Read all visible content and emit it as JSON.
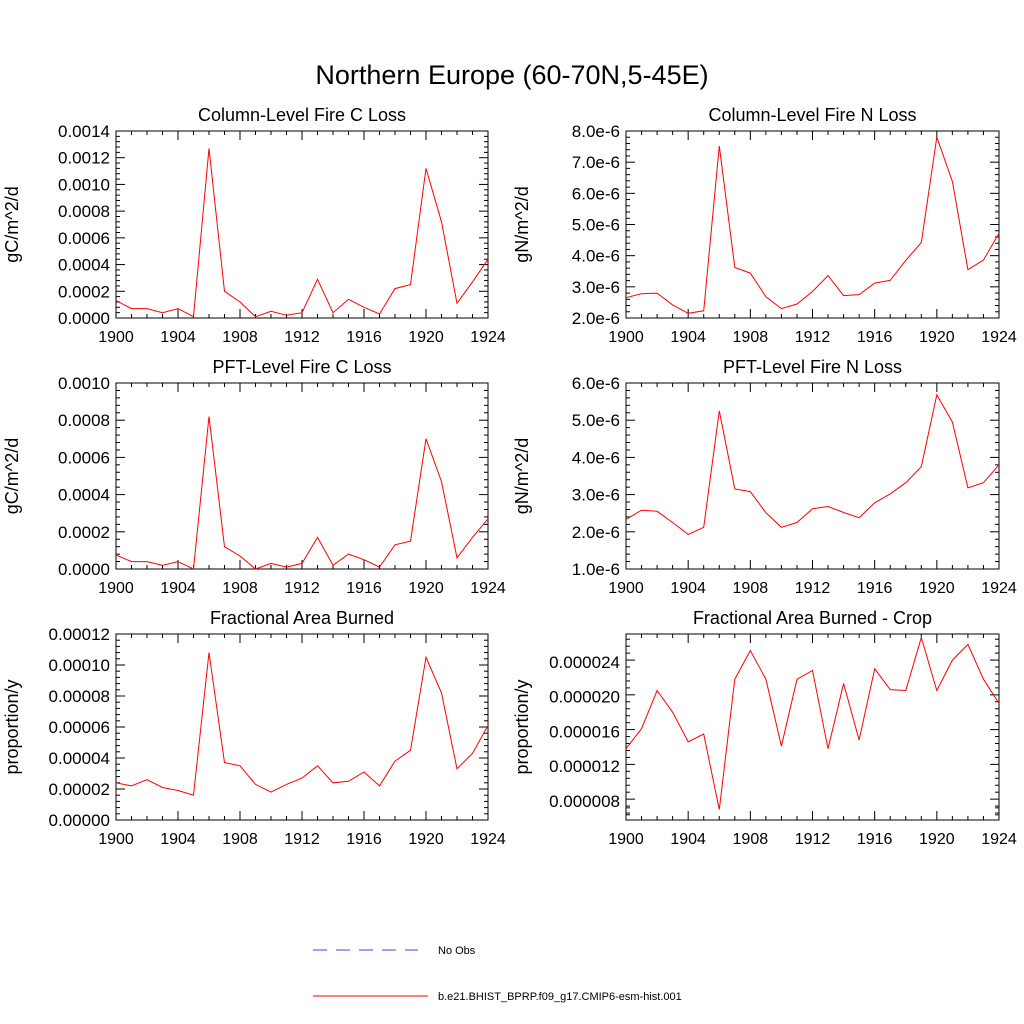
{
  "figure": {
    "title": "Northern Europe (60-70N,5-45E)"
  },
  "legend": {
    "obs_label": "No Obs",
    "model_label": "b.e21.BHIST_BPRP.f09_g17.CMIP6-esm-hist.001",
    "obs_color": "#3d3dff",
    "model_color": "#ff0000"
  },
  "chart_data": [
    {
      "id": "col-fire-c",
      "type": "line",
      "title": "Column-Level Fire C Loss",
      "xlabel": "",
      "ylabel": "gC/m^2/d",
      "xlim": [
        1900,
        1924
      ],
      "ylim": [
        0,
        0.0014
      ],
      "xticks": [
        1900,
        1904,
        1908,
        1912,
        1916,
        1920,
        1924
      ],
      "yticks": [
        0,
        0.0002,
        0.0004,
        0.0006,
        0.0008,
        0.001,
        0.0012,
        0.0014
      ],
      "ytick_labels": [
        "0.0000",
        "0.0002",
        "0.0004",
        "0.0006",
        "0.0008",
        "0.0010",
        "0.0012",
        "0.0014"
      ],
      "x": [
        1900,
        1901,
        1902,
        1903,
        1904,
        1905,
        1906,
        1907,
        1908,
        1909,
        1910,
        1911,
        1912,
        1913,
        1914,
        1915,
        1916,
        1917,
        1918,
        1919,
        1920,
        1921,
        1922,
        1923,
        1924
      ],
      "values": [
        0.00013,
        7e-05,
        7e-05,
        4e-05,
        7e-05,
        1e-05,
        0.00127,
        0.0002,
        0.00012,
        1e-05,
        5e-05,
        2e-05,
        4e-05,
        0.00029,
        4e-05,
        0.00014,
        8e-05,
        3e-05,
        0.00022,
        0.00025,
        0.00112,
        0.00072,
        0.00011,
        0.00027,
        0.00044
      ]
    },
    {
      "id": "col-fire-n",
      "type": "line",
      "title": "Column-Level Fire N Loss",
      "xlabel": "",
      "ylabel": "gN/m^2/d",
      "xlim": [
        1900,
        1924
      ],
      "ylim": [
        2e-06,
        8e-06
      ],
      "xticks": [
        1900,
        1904,
        1908,
        1912,
        1916,
        1920,
        1924
      ],
      "yticks": [
        2e-06,
        3e-06,
        4e-06,
        5e-06,
        6e-06,
        7e-06,
        8e-06
      ],
      "ytick_labels": [
        "2.0e-6",
        "3.0e-6",
        "4.0e-6",
        "5.0e-6",
        "6.0e-6",
        "7.0e-6",
        "8.0e-6"
      ],
      "x": [
        1900,
        1901,
        1902,
        1903,
        1904,
        1905,
        1906,
        1907,
        1908,
        1909,
        1910,
        1911,
        1912,
        1913,
        1914,
        1915,
        1916,
        1917,
        1918,
        1919,
        1920,
        1921,
        1922,
        1923,
        1924
      ],
      "values": [
        2.65e-06,
        2.78e-06,
        2.8e-06,
        2.42e-06,
        2.15e-06,
        2.23e-06,
        7.52e-06,
        3.62e-06,
        3.44e-06,
        2.68e-06,
        2.3e-06,
        2.45e-06,
        2.85e-06,
        3.36e-06,
        2.72e-06,
        2.75e-06,
        3.12e-06,
        3.21e-06,
        3.85e-06,
        4.42e-06,
        7.8e-06,
        6.38e-06,
        3.55e-06,
        3.86e-06,
        4.72e-06
      ]
    },
    {
      "id": "pft-fire-c",
      "type": "line",
      "title": "PFT-Level Fire C Loss",
      "xlabel": "",
      "ylabel": "gC/m^2/d",
      "xlim": [
        1900,
        1924
      ],
      "ylim": [
        0,
        0.001
      ],
      "xticks": [
        1900,
        1904,
        1908,
        1912,
        1916,
        1920,
        1924
      ],
      "yticks": [
        0,
        0.0002,
        0.0004,
        0.0006,
        0.0008,
        0.001
      ],
      "ytick_labels": [
        "0.0000",
        "0.0002",
        "0.0004",
        "0.0006",
        "0.0008",
        "0.0010"
      ],
      "x": [
        1900,
        1901,
        1902,
        1903,
        1904,
        1905,
        1906,
        1907,
        1908,
        1909,
        1910,
        1911,
        1912,
        1913,
        1914,
        1915,
        1916,
        1917,
        1918,
        1919,
        1920,
        1921,
        1922,
        1923,
        1924
      ],
      "values": [
        7.5e-05,
        4e-05,
        4e-05,
        2e-05,
        4e-05,
        0.0,
        0.00082,
        0.00012,
        7e-05,
        0.0,
        3e-05,
        1e-05,
        3e-05,
        0.00017,
        2e-05,
        8e-05,
        5e-05,
        1e-05,
        0.00013,
        0.00015,
        0.0007,
        0.00047,
        6e-05,
        0.00017,
        0.00027
      ]
    },
    {
      "id": "pft-fire-n",
      "type": "line",
      "title": "PFT-Level Fire N Loss",
      "xlabel": "",
      "ylabel": "gN/m^2/d",
      "xlim": [
        1900,
        1924
      ],
      "ylim": [
        1e-06,
        6e-06
      ],
      "xticks": [
        1900,
        1904,
        1908,
        1912,
        1916,
        1920,
        1924
      ],
      "yticks": [
        1e-06,
        2e-06,
        3e-06,
        4e-06,
        5e-06,
        6e-06
      ],
      "ytick_labels": [
        "1.0e-6",
        "2.0e-6",
        "3.0e-6",
        "4.0e-6",
        "5.0e-6",
        "6.0e-6"
      ],
      "x": [
        1900,
        1901,
        1902,
        1903,
        1904,
        1905,
        1906,
        1907,
        1908,
        1909,
        1910,
        1911,
        1912,
        1913,
        1914,
        1915,
        1916,
        1917,
        1918,
        1919,
        1920,
        1921,
        1922,
        1923,
        1924
      ],
      "values": [
        2.33e-06,
        2.58e-06,
        2.55e-06,
        2.25e-06,
        1.93e-06,
        2.12e-06,
        5.25e-06,
        3.15e-06,
        3.08e-06,
        2.51e-06,
        2.12e-06,
        2.25e-06,
        2.62e-06,
        2.68e-06,
        2.52e-06,
        2.38e-06,
        2.78e-06,
        3.02e-06,
        3.32e-06,
        3.75e-06,
        5.68e-06,
        4.95e-06,
        3.18e-06,
        3.32e-06,
        3.8e-06
      ]
    },
    {
      "id": "frac-area-burned",
      "type": "line",
      "title": "Fractional Area Burned",
      "xlabel": "",
      "ylabel": "proportion/y",
      "xlim": [
        1900,
        1924
      ],
      "ylim": [
        0,
        0.00012
      ],
      "xticks": [
        1900,
        1904,
        1908,
        1912,
        1916,
        1920,
        1924
      ],
      "yticks": [
        0,
        2e-05,
        4e-05,
        6e-05,
        8e-05,
        0.0001,
        0.00012
      ],
      "ytick_labels": [
        "0.00000",
        "0.00002",
        "0.00004",
        "0.00006",
        "0.00008",
        "0.00010",
        "0.00012"
      ],
      "x": [
        1900,
        1901,
        1902,
        1903,
        1904,
        1905,
        1906,
        1907,
        1908,
        1909,
        1910,
        1911,
        1912,
        1913,
        1914,
        1915,
        1916,
        1917,
        1918,
        1919,
        1920,
        1921,
        1922,
        1923,
        1924
      ],
      "values": [
        2.4e-05,
        2.2e-05,
        2.6e-05,
        2.1e-05,
        1.9e-05,
        1.6e-05,
        0.000108,
        3.7e-05,
        3.5e-05,
        2.3e-05,
        1.8e-05,
        2.3e-05,
        2.7e-05,
        3.5e-05,
        2.4e-05,
        2.5e-05,
        3.1e-05,
        2.2e-05,
        3.8e-05,
        4.5e-05,
        0.000105,
        8.2e-05,
        3.3e-05,
        4.3e-05,
        6.1e-05
      ]
    },
    {
      "id": "frac-area-burned-crop",
      "type": "line",
      "title": "Fractional Area Burned - Crop",
      "xlabel": "",
      "ylabel": "proportion/y",
      "xlim": [
        1900,
        1924
      ],
      "ylim": [
        5.8e-06,
        2.72e-05
      ],
      "xticks": [
        1900,
        1904,
        1908,
        1912,
        1916,
        1920,
        1924
      ],
      "yticks": [
        8e-06,
        1.2e-05,
        1.6e-05,
        2e-05,
        2.4e-05
      ],
      "ytick_labels": [
        "0.000008",
        "0.000012",
        "0.000016",
        "0.000020",
        "0.000024"
      ],
      "x": [
        1900,
        1901,
        1902,
        1903,
        1904,
        1905,
        1906,
        1907,
        1908,
        1909,
        1910,
        1911,
        1912,
        1913,
        1914,
        1915,
        1916,
        1917,
        1918,
        1919,
        1920,
        1921,
        1922,
        1923,
        1924
      ],
      "values": [
        1.4e-05,
        1.63e-05,
        2.07e-05,
        1.82e-05,
        1.48e-05,
        1.57e-05,
        7e-06,
        2.2e-05,
        2.53e-05,
        2.2e-05,
        1.43e-05,
        2.2e-05,
        2.3e-05,
        1.4e-05,
        2.15e-05,
        1.5e-05,
        2.32e-05,
        2.08e-05,
        2.07e-05,
        2.68e-05,
        2.07e-05,
        2.42e-05,
        2.6e-05,
        2.2e-05,
        1.92e-05
      ]
    }
  ]
}
